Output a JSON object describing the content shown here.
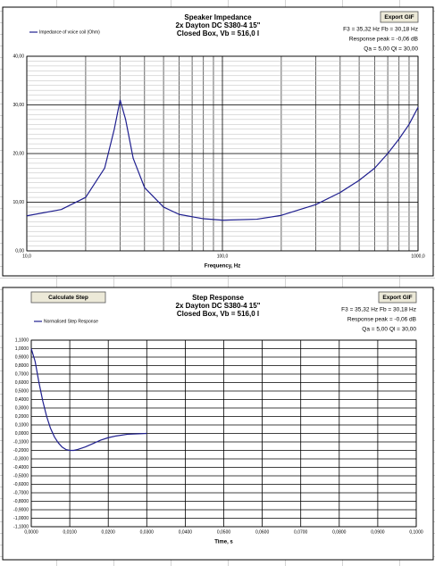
{
  "chart_data": [
    {
      "type": "line",
      "title": "Speaker Impedance",
      "subtitle": [
        "2x Dayton  DC S380-4 15\"",
        "Closed Box, Vb = 516,0 l"
      ],
      "annotations": [
        "F3 = 35,32 Hz  Fb = 30,18 Hz",
        "Response peak = -0,06 dB",
        "Qa = 5,00  Ql = 30,00"
      ],
      "buttons": [
        "Export GIF"
      ],
      "xlabel": "Frequency, Hz",
      "xscale": "log",
      "xlim": [
        10,
        1000
      ],
      "xticks": [
        {
          "value": 10,
          "label": "10,0"
        },
        {
          "value": 100,
          "label": "100,0"
        },
        {
          "value": 1000,
          "label": "1000,0"
        }
      ],
      "ylim": [
        0,
        40
      ],
      "yticks": [
        {
          "value": 0,
          "label": "0,00"
        },
        {
          "value": 10,
          "label": "10,00"
        },
        {
          "value": 20,
          "label": "20,00"
        },
        {
          "value": 30,
          "label": "30,00"
        },
        {
          "value": 40,
          "label": "40,00"
        }
      ],
      "grid": true,
      "x": [
        10,
        15,
        20,
        25,
        28,
        30,
        32,
        35,
        40,
        50,
        60,
        80,
        100,
        150,
        200,
        300,
        400,
        500,
        600,
        700,
        800,
        900,
        1000
      ],
      "series": [
        {
          "name": "Impedance of voice coil (Ohm)",
          "color": "#1f1f8f",
          "values": [
            7.2,
            8.5,
            11,
            17,
            25,
            31,
            27,
            19,
            13,
            9,
            7.5,
            6.6,
            6.3,
            6.5,
            7.3,
            9.5,
            12,
            14.5,
            17,
            20,
            23,
            26,
            29.5
          ]
        }
      ]
    },
    {
      "type": "line",
      "title": "Step Response",
      "subtitle": [
        "2x Dayton  DC S380-4 15\"",
        "Closed Box, Vb = 516,0 l"
      ],
      "annotations": [
        "F3 = 35,32 Hz  Fb = 30,18 Hz",
        "Response peak = -0,06 dB",
        "Qa = 5,00  Ql = 30,00"
      ],
      "buttons": [
        "Export GIF",
        "Calculate Step"
      ],
      "xlabel": "Time, s",
      "xscale": "linear",
      "xlim": [
        0,
        0.1
      ],
      "xticks": [
        {
          "value": 0,
          "label": "0,0000"
        },
        {
          "value": 0.01,
          "label": "0,0100"
        },
        {
          "value": 0.02,
          "label": "0,0200"
        },
        {
          "value": 0.03,
          "label": "0,0300"
        },
        {
          "value": 0.04,
          "label": "0,0400"
        },
        {
          "value": 0.05,
          "label": "0,0500"
        },
        {
          "value": 0.06,
          "label": "0,0600"
        },
        {
          "value": 0.07,
          "label": "0,0700"
        },
        {
          "value": 0.08,
          "label": "0,0800"
        },
        {
          "value": 0.09,
          "label": "0,0900"
        },
        {
          "value": 0.1,
          "label": "0,1000"
        }
      ],
      "ylim": [
        -1.1,
        1.1
      ],
      "yticks": [
        {
          "value": 1.1,
          "label": "1,1000"
        },
        {
          "value": 1.0,
          "label": "1,0000"
        },
        {
          "value": 0.9,
          "label": "0,9000"
        },
        {
          "value": 0.8,
          "label": "0,8000"
        },
        {
          "value": 0.7,
          "label": "0,7000"
        },
        {
          "value": 0.6,
          "label": "0,6000"
        },
        {
          "value": 0.5,
          "label": "0,5000"
        },
        {
          "value": 0.4,
          "label": "0,4000"
        },
        {
          "value": 0.3,
          "label": "0,3000"
        },
        {
          "value": 0.2,
          "label": "0,2000"
        },
        {
          "value": 0.1,
          "label": "0,1000"
        },
        {
          "value": 0,
          "label": "0,0000"
        },
        {
          "value": -0.1,
          "label": "-0,1000"
        },
        {
          "value": -0.2,
          "label": "-0,2000"
        },
        {
          "value": -0.3,
          "label": "-0,3000"
        },
        {
          "value": -0.4,
          "label": "-0,4000"
        },
        {
          "value": -0.5,
          "label": "-0,5000"
        },
        {
          "value": -0.6,
          "label": "-0,6000"
        },
        {
          "value": -0.7,
          "label": "-0,7000"
        },
        {
          "value": -0.8,
          "label": "-0,8000"
        },
        {
          "value": -0.9,
          "label": "-0,9000"
        },
        {
          "value": -1.0,
          "label": "-1,0000"
        },
        {
          "value": -1.1,
          "label": "-1,1000"
        }
      ],
      "grid": true,
      "x": [
        0,
        0.001,
        0.002,
        0.003,
        0.004,
        0.005,
        0.006,
        0.007,
        0.008,
        0.009,
        0.01,
        0.011,
        0.012,
        0.014,
        0.016,
        0.018,
        0.02,
        0.022,
        0.025,
        0.03
      ],
      "series": [
        {
          "name": "Normalised  Step Response",
          "color": "#1f1f8f",
          "values": [
            1.0,
            0.85,
            0.6,
            0.38,
            0.2,
            0.06,
            -0.04,
            -0.11,
            -0.16,
            -0.19,
            -0.2,
            -0.2,
            -0.19,
            -0.16,
            -0.12,
            -0.08,
            -0.05,
            -0.03,
            -0.01,
            0
          ]
        }
      ]
    }
  ]
}
